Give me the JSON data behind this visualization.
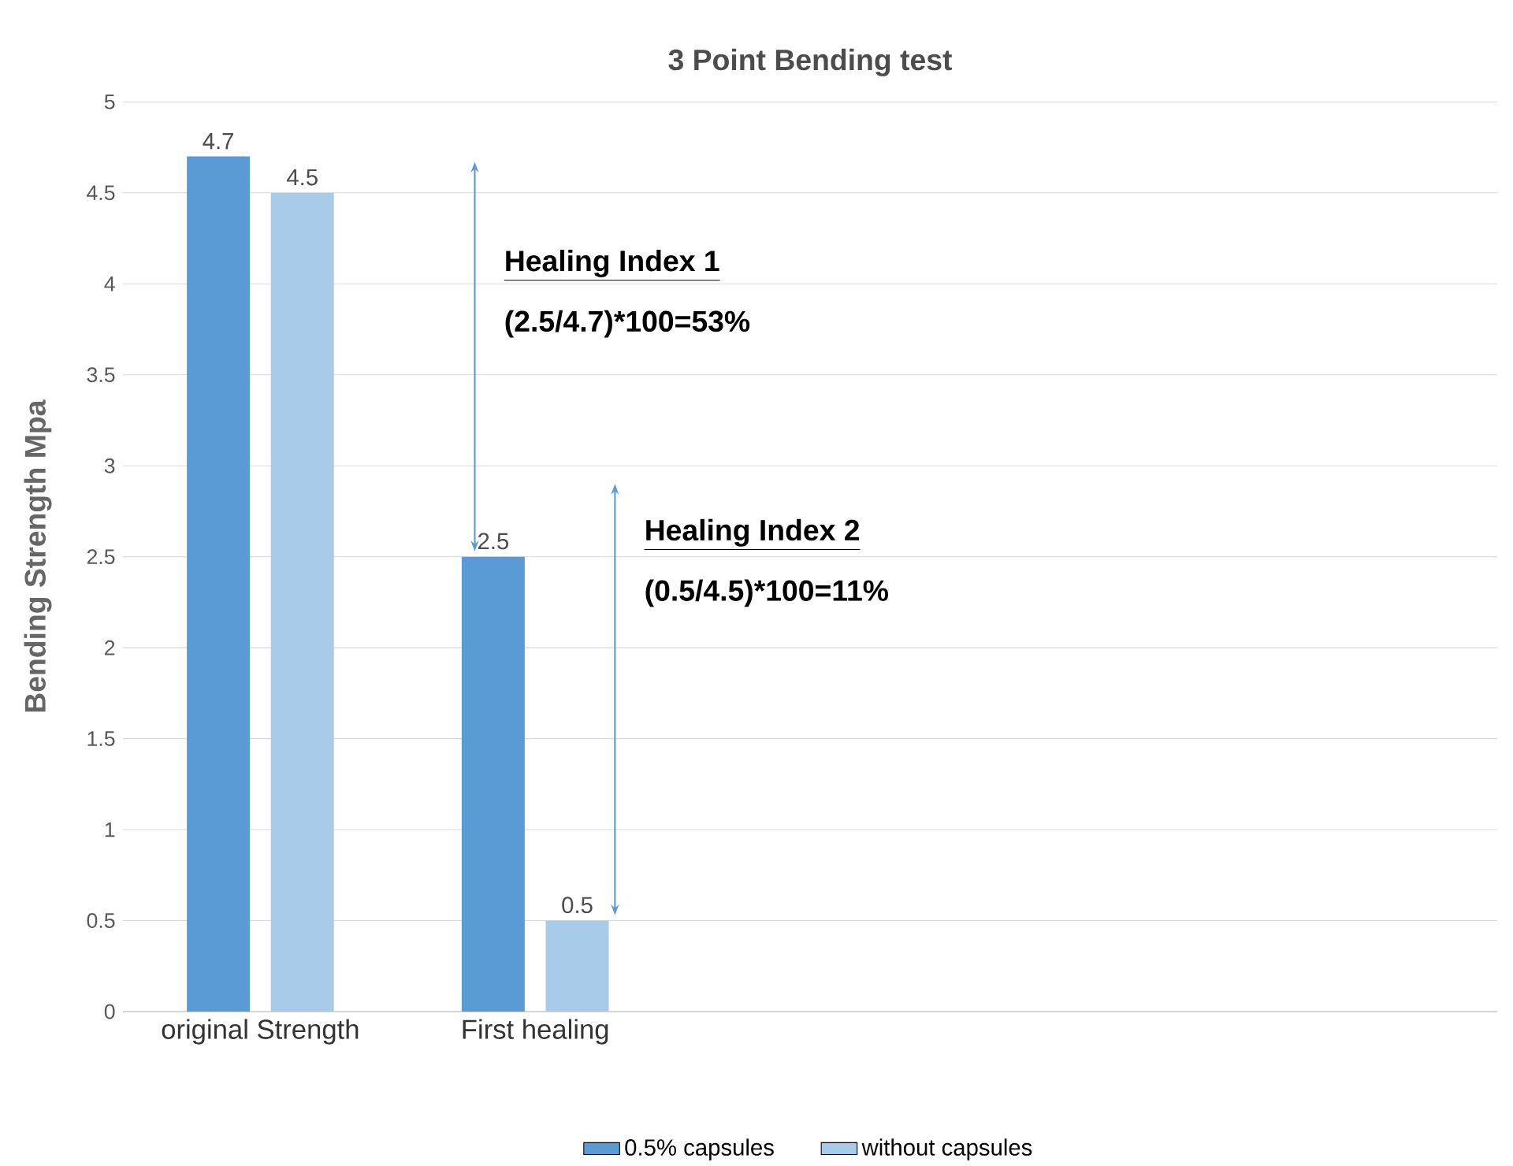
{
  "chart_data": {
    "type": "bar",
    "title": "3 Point Bending test",
    "ylabel": "Bending Strength Mpa",
    "categories": [
      "original Strength",
      "First healing",
      null,
      null,
      null
    ],
    "series": [
      {
        "name": "0.5% capsules",
        "color": "#5b9bd5",
        "values": [
          4.7,
          2.5,
          null,
          null,
          null
        ]
      },
      {
        "name": "without capsules",
        "color": "#a9cbea",
        "values": [
          4.5,
          0.5,
          null,
          null,
          null
        ]
      }
    ],
    "ylim": [
      0,
      5
    ],
    "yticks": [
      0,
      0.5,
      1,
      1.5,
      2,
      2.5,
      3,
      3.5,
      4,
      4.5,
      5
    ],
    "grid": "y",
    "legend": "bottom",
    "data_labels": true,
    "annotations": [
      "Healing Index 1",
      "(2.5/4.7)*100=53%",
      "Healing Index 2",
      "(0.5/4.5)*100=11%"
    ]
  }
}
